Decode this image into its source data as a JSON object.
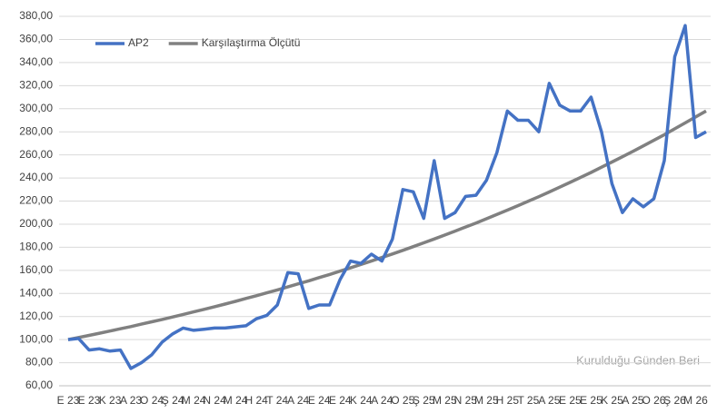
{
  "chart_data": {
    "type": "line",
    "categories": [
      "E 23",
      null,
      "E 23",
      null,
      "K 23",
      null,
      "A 23",
      null,
      "O 24",
      null,
      "Ş 24",
      null,
      "M 24",
      null,
      "N 24",
      null,
      "M 24",
      null,
      "H 24",
      null,
      "T 24",
      null,
      "A 24",
      null,
      "E 24",
      null,
      "E 24",
      null,
      "K 24",
      null,
      "A 24",
      null,
      "O 25",
      null,
      "Ş 25",
      null,
      "M 25",
      null,
      "N 25",
      null,
      "M 25",
      null,
      "H 25",
      null,
      "T 25",
      null,
      "A 25",
      null,
      "E 25",
      null,
      "E 25",
      null,
      "K 25",
      null,
      "A 25",
      null,
      "O 26",
      null,
      "Ş 26",
      null,
      "M 26",
      null
    ],
    "series": [
      {
        "name": "AP2",
        "color": "#4472c4",
        "values": [
          100,
          101,
          91,
          92,
          90,
          91,
          75,
          80,
          87,
          98,
          105,
          110,
          108,
          109,
          110,
          110,
          111,
          112,
          118,
          121,
          130,
          158,
          157,
          127,
          130,
          130,
          152,
          168,
          166,
          174,
          168,
          187,
          230,
          228,
          205,
          255,
          205,
          210,
          224,
          225,
          238,
          262,
          298,
          290,
          290,
          280,
          322,
          303,
          298,
          298,
          310,
          280,
          235,
          210,
          222,
          215,
          222,
          255,
          345,
          372,
          275,
          280
        ]
      },
      {
        "name": "Karşılaştırma Ölçütü",
        "color": "#808080",
        "values": [
          100,
          101.8,
          103.6,
          105.5,
          107.4,
          109.4,
          111.3,
          113.4,
          115.4,
          117.5,
          119.6,
          121.8,
          124,
          126.2,
          128.5,
          130.8,
          133.1,
          135.6,
          138,
          140.5,
          143,
          145.6,
          148.3,
          150.9,
          153.7,
          156.4,
          159.3,
          162.1,
          165.1,
          168,
          171.1,
          174.2,
          177.3,
          180.5,
          183.8,
          187.1,
          190.5,
          194,
          197.5,
          201,
          204.7,
          208.4,
          212.1,
          216,
          219.9,
          223.8,
          227.9,
          232,
          236.2,
          240.5,
          244.8,
          249.3,
          253.8,
          258.4,
          263,
          267.8,
          272.6,
          277.5,
          282.6,
          287.7,
          292.9,
          298
        ]
      }
    ],
    "ylim": [
      60,
      380
    ],
    "yticks": [
      {
        "value": 60,
        "label": "60,00"
      },
      {
        "value": 80,
        "label": "80,00"
      },
      {
        "value": 100,
        "label": "100,00"
      },
      {
        "value": 120,
        "label": "120,00"
      },
      {
        "value": 140,
        "label": "140,00"
      },
      {
        "value": 160,
        "label": "160,00"
      },
      {
        "value": 180,
        "label": "180,00"
      },
      {
        "value": 200,
        "label": "200,00"
      },
      {
        "value": 220,
        "label": "220,00"
      },
      {
        "value": 240,
        "label": "240,00"
      },
      {
        "value": 260,
        "label": "260,00"
      },
      {
        "value": 280,
        "label": "280,00"
      },
      {
        "value": 300,
        "label": "300,00"
      },
      {
        "value": 320,
        "label": "320,00"
      },
      {
        "value": 340,
        "label": "340,00"
      },
      {
        "value": 360,
        "label": "360,00"
      },
      {
        "value": 380,
        "label": "380,00"
      }
    ],
    "grid": true,
    "legend": "upper left",
    "annotation": "Kurulduğu Günden Beri"
  }
}
